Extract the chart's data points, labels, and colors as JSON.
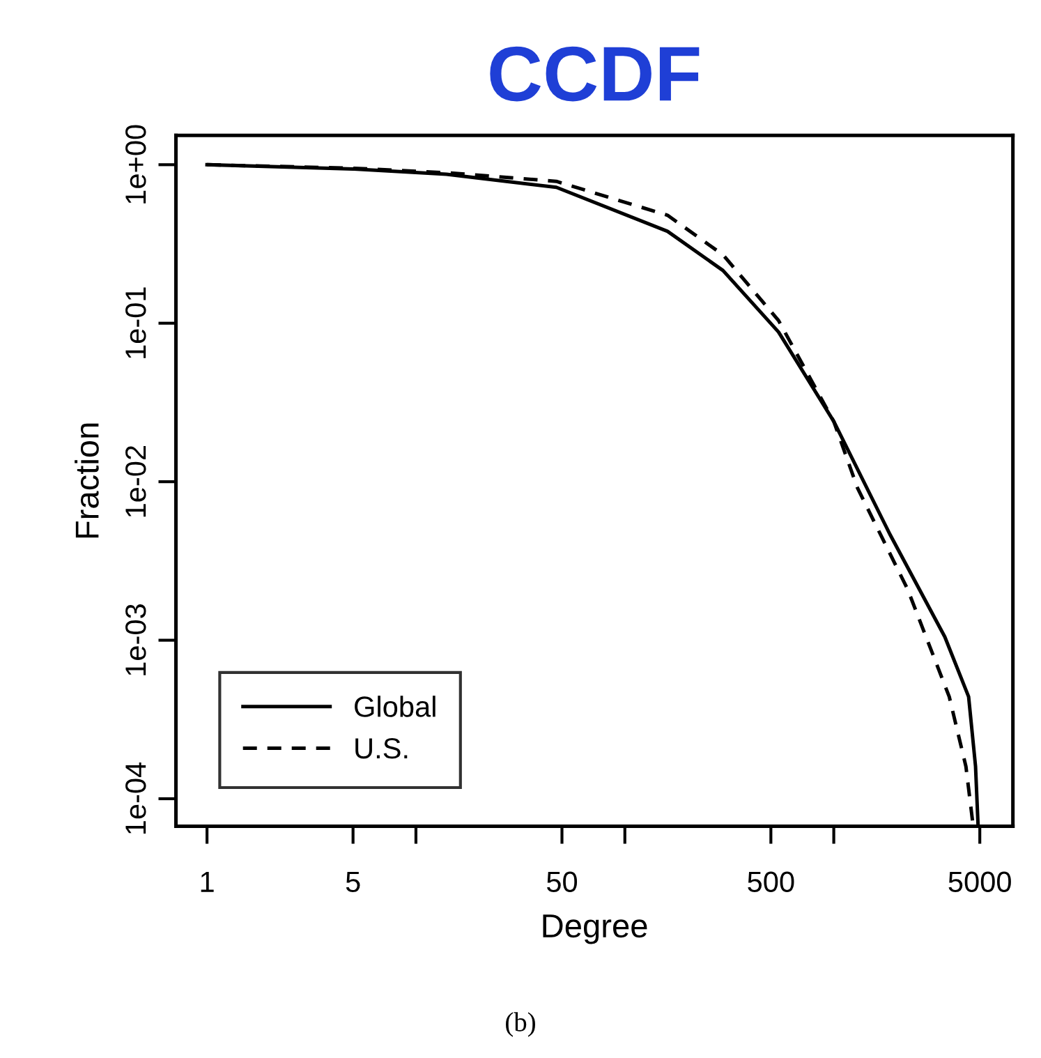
{
  "chart_data": {
    "type": "line",
    "title": "CCDF",
    "xlabel": "Degree",
    "ylabel": "Fraction",
    "annotations": [
      "(b)"
    ],
    "log": "xy",
    "grid": false,
    "legend": "bottom left",
    "xlim": [
      0.71,
      7200
    ],
    "ylim": [
      6.7e-05,
      1.53
    ],
    "xticks": [
      1,
      5,
      {
        "value": 10,
        "label": null
      },
      50,
      {
        "value": 100,
        "label": null
      },
      500,
      {
        "value": 1000,
        "label": null
      },
      5000
    ],
    "yticks": [
      {
        "value": 1,
        "label": "1e+00"
      },
      {
        "value": 0.1,
        "label": "1e-01"
      },
      {
        "value": 0.01,
        "label": "1e-02"
      },
      {
        "value": 0.001,
        "label": "1e-03"
      },
      {
        "value": 0.0001,
        "label": "1e-04"
      }
    ],
    "series": [
      {
        "name": "Global",
        "color": "#000000",
        "line_style": "solid",
        "x": [
          1,
          5,
          14,
          47,
          160,
          295,
          544,
          1000,
          1850,
          3400,
          4420,
          4770,
          4900
        ],
        "values": [
          1,
          0.94,
          0.87,
          0.72,
          0.38,
          0.215,
          0.088,
          0.024,
          0.0047,
          0.00105,
          0.00044,
          0.00016,
          7e-05
        ]
      },
      {
        "name": "U.S.",
        "color": "#000000",
        "line_style": "dashed",
        "x": [
          1,
          5,
          14,
          47,
          160,
          295,
          544,
          1000,
          1300,
          2255,
          3570,
          4290,
          4630
        ],
        "values": [
          1,
          0.95,
          0.89,
          0.785,
          0.48,
          0.27,
          0.104,
          0.024,
          0.0091,
          0.0021,
          0.00044,
          0.00016,
          7e-05
        ]
      }
    ]
  }
}
